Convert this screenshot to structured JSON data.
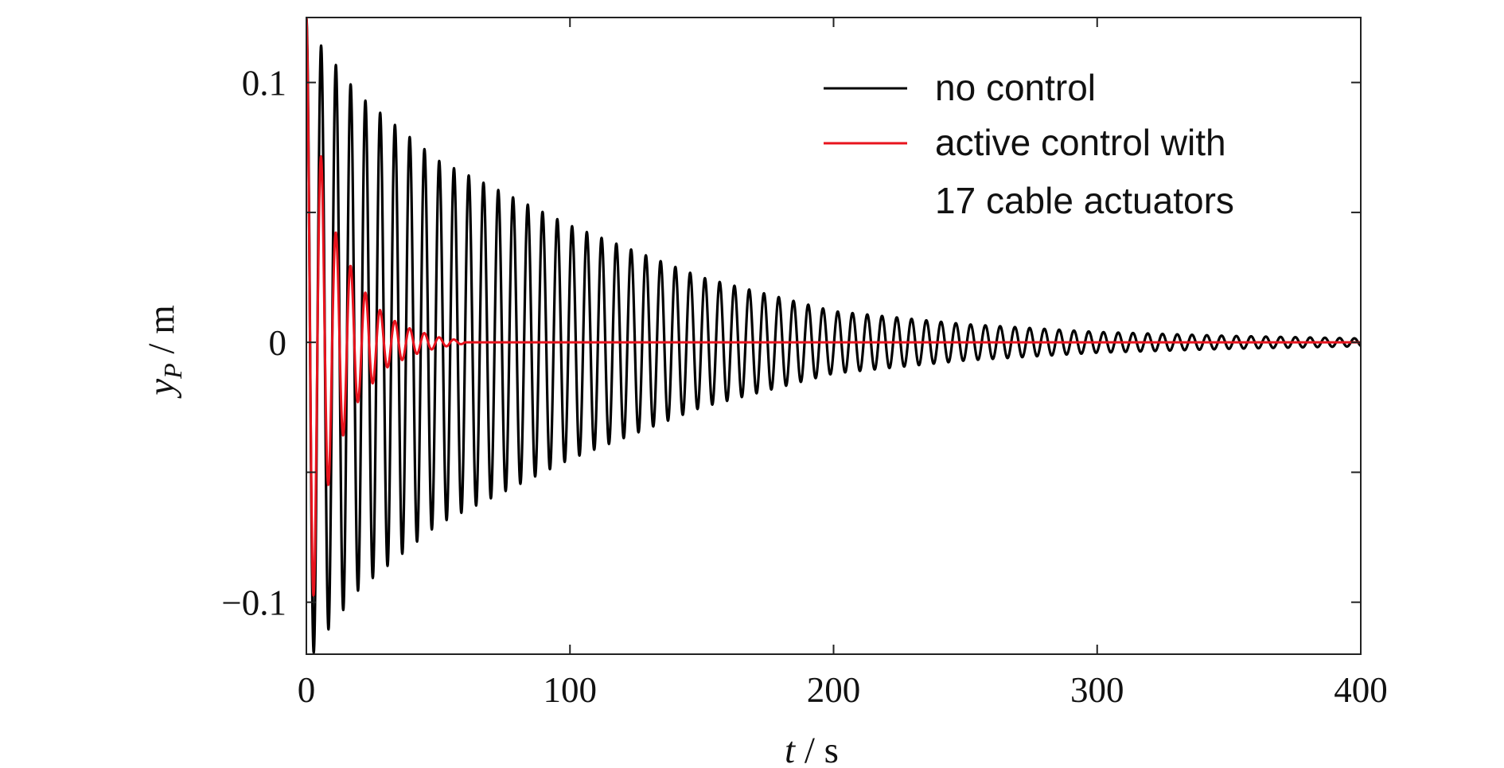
{
  "chart_data": {
    "type": "line",
    "xlabel": {
      "var": "t",
      "unit": "s"
    },
    "ylabel": {
      "var": "y",
      "sub": "P",
      "unit": "m"
    },
    "xlim": [
      0,
      400
    ],
    "ylim": [
      -0.12,
      0.125
    ],
    "x_ticks": [
      0,
      100,
      200,
      300,
      400
    ],
    "x_tick_labels": [
      "0",
      "100",
      "200",
      "300",
      "400"
    ],
    "y_ticks": [
      -0.1,
      -0.05,
      0,
      0.05,
      0.1
    ],
    "y_tick_labels": [
      "−0.1",
      "",
      "0",
      "",
      "0.1"
    ],
    "grid": false,
    "legend_position": "top-right",
    "period_s": 5.6,
    "series": [
      {
        "name": "no control",
        "color": "#000000",
        "envelope": {
          "t": [
            0,
            5,
            20,
            50,
            100,
            150,
            200,
            250,
            300,
            350,
            400
          ],
          "amplitude": [
            0.125,
            0.115,
            0.095,
            0.07,
            0.045,
            0.025,
            0.012,
            0.007,
            0.004,
            0.0025,
            0.0015
          ]
        }
      },
      {
        "name_lines": [
          "active control with",
          "17 cable actuators"
        ],
        "color": "#e8131d",
        "envelope": {
          "t": [
            0,
            5,
            10,
            20,
            30,
            40,
            50,
            60
          ],
          "amplitude": [
            0.125,
            0.075,
            0.045,
            0.022,
            0.01,
            0.005,
            0.002,
            0.0005
          ]
        }
      }
    ]
  }
}
